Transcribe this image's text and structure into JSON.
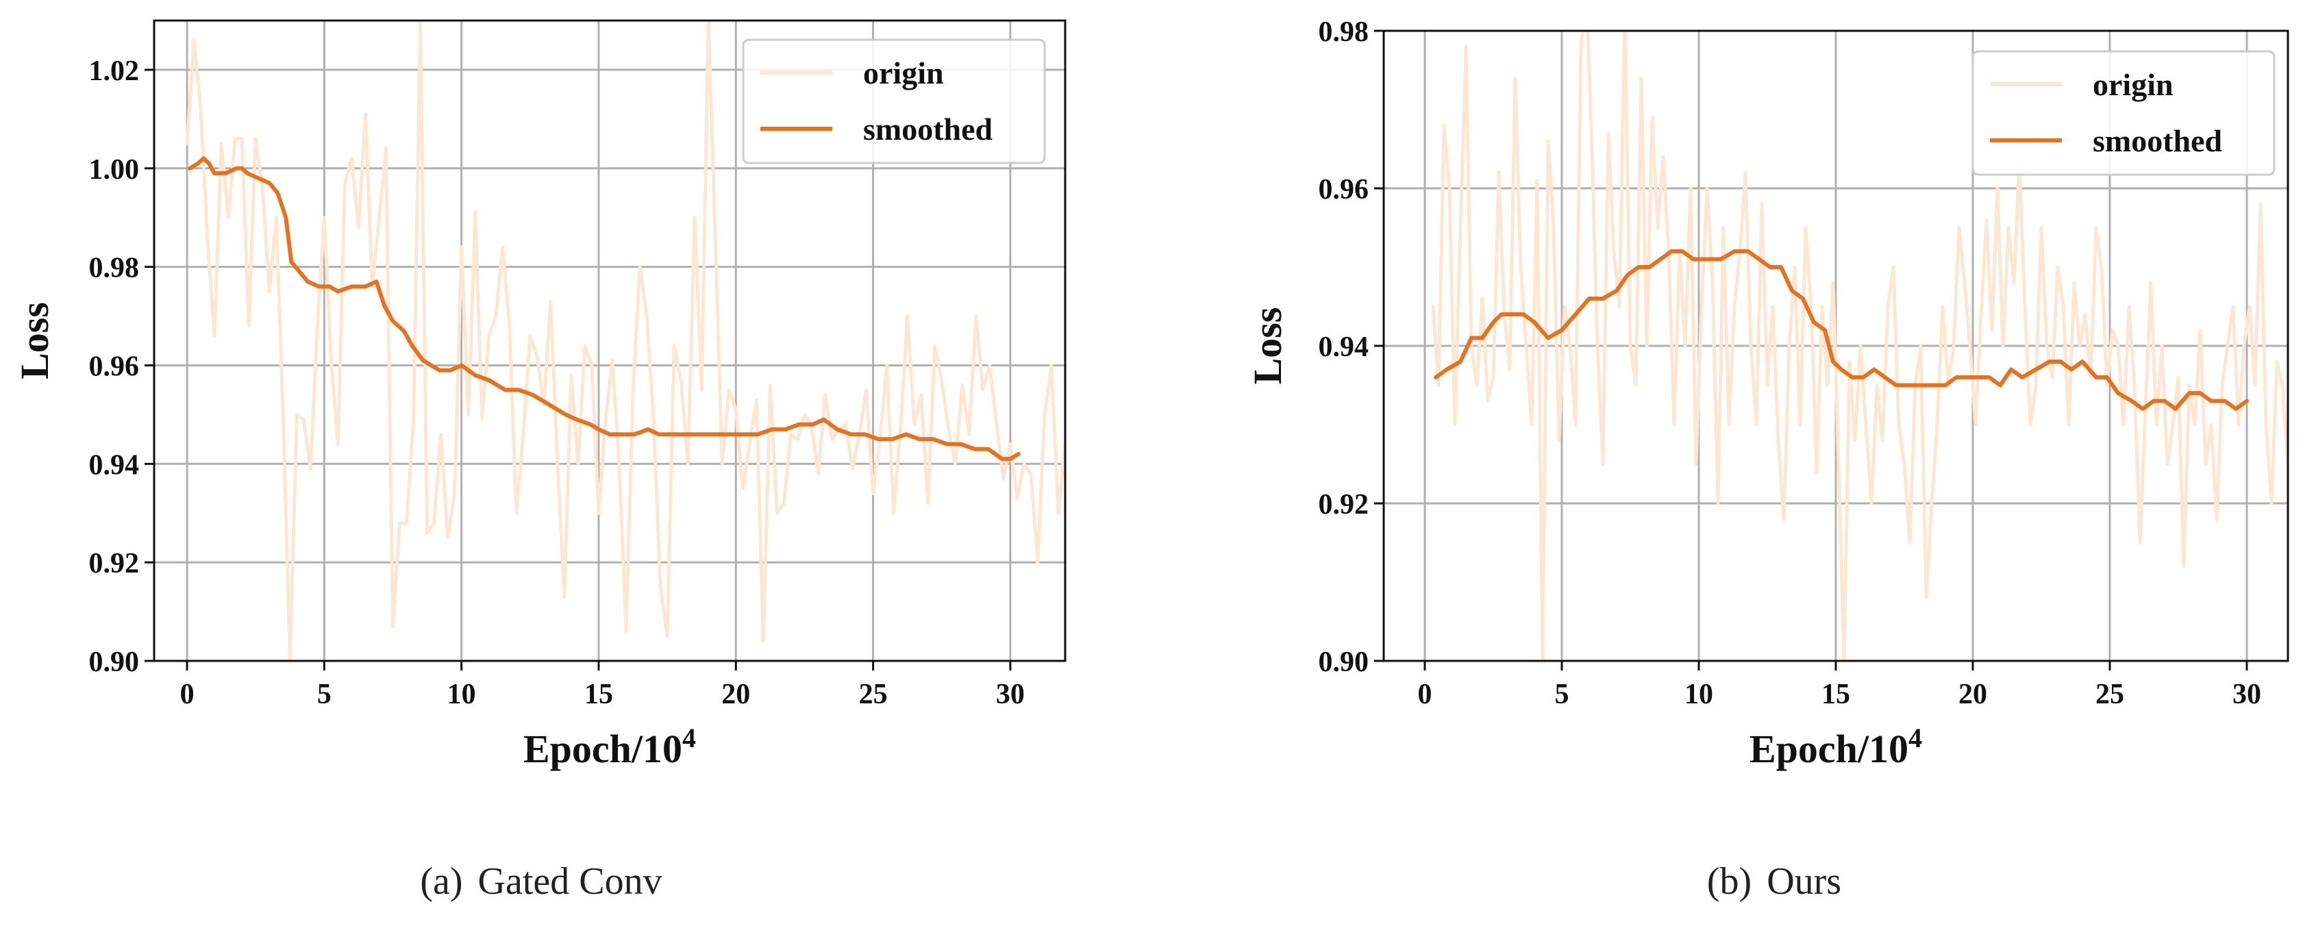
{
  "chart_data": [
    {
      "type": "line",
      "caption": {
        "label": "(a)",
        "text": "Gated Conv"
      },
      "xlabel": "Epoch/10",
      "xlabel_sup": "4",
      "ylabel": "Loss",
      "xlim": [
        -1.2,
        32.0
      ],
      "ylim": [
        0.9,
        1.03
      ],
      "xticks": [
        0,
        5,
        10,
        15,
        20,
        25,
        30
      ],
      "yticks": [
        0.9,
        0.92,
        0.94,
        0.96,
        0.98,
        1.0,
        1.02
      ],
      "grid": true,
      "legend": "top-right",
      "series": [
        {
          "name": "origin",
          "color": "#fde6d2",
          "x_start": 0.0,
          "x_step": 0.25,
          "y": [
            1.005,
            1.026,
            1.012,
            0.985,
            0.966,
            1.005,
            0.99,
            1.006,
            1.006,
            0.968,
            1.006,
            0.996,
            0.975,
            0.99,
            0.95,
            0.9,
            0.95,
            0.949,
            0.939,
            0.968,
            0.99,
            0.961,
            0.944,
            0.997,
            1.002,
            0.988,
            1.011,
            0.976,
            0.99,
            1.004,
            0.907,
            0.928,
            0.928,
            0.949,
            1.03,
            0.926,
            0.928,
            0.946,
            0.925,
            0.934,
            0.984,
            0.95,
            0.991,
            0.949,
            0.966,
            0.97,
            0.984,
            0.968,
            0.93,
            0.946,
            0.966,
            0.962,
            0.952,
            0.973,
            0.94,
            0.913,
            0.958,
            0.94,
            0.964,
            0.96,
            0.93,
            0.949,
            0.961,
            0.94,
            0.906,
            0.955,
            0.98,
            0.97,
            0.949,
            0.915,
            0.905,
            0.964,
            0.957,
            0.94,
            0.99,
            0.955,
            1.03,
            0.986,
            0.94,
            0.955,
            0.951,
            0.935,
            0.944,
            0.953,
            0.904,
            0.956,
            0.93,
            0.932,
            0.946,
            0.945,
            0.95,
            0.948,
            0.938,
            0.954,
            0.945,
            0.947,
            0.948,
            0.939,
            0.946,
            0.955,
            0.934,
            0.945,
            0.96,
            0.93,
            0.947,
            0.97,
            0.948,
            0.954,
            0.932,
            0.964,
            0.957,
            0.947,
            0.94,
            0.956,
            0.946,
            0.97,
            0.955,
            0.96,
            0.948,
            0.937,
            0.944,
            0.933,
            0.94,
            0.938,
            0.92,
            0.95,
            0.96,
            0.93,
            0.944,
            0.945,
            0.948,
            0.955,
            0.94,
            0.92,
            0.93,
            0.945,
            0.958,
            0.95,
            0.94,
            0.935,
            0.946,
            0.955,
            0.93,
            0.912,
            0.947,
            0.944,
            0.94,
            0.92,
            0.935,
            0.94,
            0.95,
            0.947,
            0.958,
            0.943,
            0.935,
            0.95,
            0.946,
            0.932,
            0.925,
            0.92,
            0.946,
            0.931,
            0.916,
            0.94,
            0.96,
            0.948,
            0.942,
            0.97,
            0.95,
            0.935,
            0.93,
            0.925,
            0.912,
            0.928,
            0.925,
            0.926,
            0.909,
            0.945,
            0.957
          ]
        },
        {
          "name": "smoothed",
          "color": "#e8711e",
          "points": [
            [
              0.1,
              1.0
            ],
            [
              0.4,
              1.001
            ],
            [
              0.6,
              1.002
            ],
            [
              0.8,
              1.001
            ],
            [
              1.0,
              0.999
            ],
            [
              1.4,
              0.999
            ],
            [
              1.8,
              1.0
            ],
            [
              2.0,
              1.0
            ],
            [
              2.2,
              0.999
            ],
            [
              2.6,
              0.998
            ],
            [
              3.0,
              0.997
            ],
            [
              3.3,
              0.995
            ],
            [
              3.6,
              0.99
            ],
            [
              3.8,
              0.981
            ],
            [
              4.1,
              0.979
            ],
            [
              4.4,
              0.977
            ],
            [
              4.8,
              0.976
            ],
            [
              5.2,
              0.976
            ],
            [
              5.5,
              0.975
            ],
            [
              6.0,
              0.976
            ],
            [
              6.5,
              0.976
            ],
            [
              6.9,
              0.977
            ],
            [
              7.2,
              0.972
            ],
            [
              7.5,
              0.969
            ],
            [
              7.9,
              0.967
            ],
            [
              8.2,
              0.964
            ],
            [
              8.6,
              0.961
            ],
            [
              9.2,
              0.959
            ],
            [
              9.6,
              0.959
            ],
            [
              10.0,
              0.96
            ],
            [
              10.5,
              0.958
            ],
            [
              11.0,
              0.957
            ],
            [
              11.6,
              0.955
            ],
            [
              12.1,
              0.955
            ],
            [
              12.6,
              0.954
            ],
            [
              13.2,
              0.952
            ],
            [
              13.8,
              0.95
            ],
            [
              14.2,
              0.949
            ],
            [
              14.7,
              0.948
            ],
            [
              15.0,
              0.947
            ],
            [
              15.4,
              0.946
            ],
            [
              15.8,
              0.946
            ],
            [
              16.3,
              0.946
            ],
            [
              16.8,
              0.947
            ],
            [
              17.2,
              0.946
            ],
            [
              17.8,
              0.946
            ],
            [
              18.3,
              0.946
            ],
            [
              18.8,
              0.946
            ],
            [
              19.3,
              0.946
            ],
            [
              19.8,
              0.946
            ],
            [
              20.3,
              0.946
            ],
            [
              20.8,
              0.946
            ],
            [
              21.3,
              0.947
            ],
            [
              21.8,
              0.947
            ],
            [
              22.3,
              0.948
            ],
            [
              22.8,
              0.948
            ],
            [
              23.2,
              0.949
            ],
            [
              23.7,
              0.947
            ],
            [
              24.2,
              0.946
            ],
            [
              24.7,
              0.946
            ],
            [
              25.2,
              0.945
            ],
            [
              25.7,
              0.945
            ],
            [
              26.2,
              0.946
            ],
            [
              26.7,
              0.945
            ],
            [
              27.2,
              0.945
            ],
            [
              27.7,
              0.944
            ],
            [
              28.2,
              0.944
            ],
            [
              28.7,
              0.943
            ],
            [
              29.2,
              0.943
            ],
            [
              29.7,
              0.941
            ],
            [
              30.0,
              0.941
            ],
            [
              30.3,
              0.942
            ]
          ]
        }
      ]
    },
    {
      "type": "line",
      "caption": {
        "label": "(b)",
        "text": "Ours"
      },
      "xlabel": "Epoch/10",
      "xlabel_sup": "4",
      "ylabel": "Loss",
      "xlim": [
        -1.5,
        31.5
      ],
      "ylim": [
        0.9,
        0.98
      ],
      "xticks": [
        0,
        5,
        10,
        15,
        20,
        25,
        30
      ],
      "yticks": [
        0.9,
        0.92,
        0.94,
        0.96,
        0.98
      ],
      "grid": true,
      "legend": "top-right",
      "series": [
        {
          "name": "origin",
          "color": "#fde6d2",
          "x_start": 0.3,
          "x_step": 0.2,
          "y": [
            0.945,
            0.935,
            0.968,
            0.96,
            0.93,
            0.955,
            0.978,
            0.94,
            0.935,
            0.946,
            0.933,
            0.936,
            0.962,
            0.944,
            0.937,
            0.974,
            0.95,
            0.94,
            0.93,
            0.961,
            0.9,
            0.966,
            0.955,
            0.928,
            0.945,
            0.94,
            0.93,
            0.978,
            0.985,
            0.965,
            0.94,
            0.925,
            0.967,
            0.952,
            0.945,
            0.982,
            0.94,
            0.935,
            0.974,
            0.94,
            0.969,
            0.955,
            0.964,
            0.952,
            0.93,
            0.952,
            0.94,
            0.96,
            0.925,
            0.945,
            0.96,
            0.948,
            0.92,
            0.955,
            0.93,
            0.945,
            0.952,
            0.962,
            0.94,
            0.93,
            0.958,
            0.935,
            0.945,
            0.928,
            0.918,
            0.94,
            0.95,
            0.93,
            0.955,
            0.945,
            0.924,
            0.945,
            0.935,
            0.948,
            0.925,
            0.9,
            0.938,
            0.928,
            0.94,
            0.93,
            0.92,
            0.935,
            0.928,
            0.945,
            0.95,
            0.93,
            0.925,
            0.915,
            0.935,
            0.94,
            0.908,
            0.92,
            0.93,
            0.945,
            0.935,
            0.94,
            0.955,
            0.948,
            0.94,
            0.93,
            0.944,
            0.956,
            0.942,
            0.96,
            0.94,
            0.955,
            0.948,
            0.963,
            0.945,
            0.93,
            0.935,
            0.955,
            0.94,
            0.936,
            0.95,
            0.945,
            0.93,
            0.948,
            0.94,
            0.944,
            0.936,
            0.955,
            0.95,
            0.935,
            0.942,
            0.94,
            0.93,
            0.945,
            0.935,
            0.915,
            0.932,
            0.948,
            0.93,
            0.94,
            0.925,
            0.93,
            0.936,
            0.912,
            0.935,
            0.93,
            0.942,
            0.925,
            0.93,
            0.918,
            0.935,
            0.94,
            0.945,
            0.93,
            0.94,
            0.945,
            0.935,
            0.958,
            0.93,
            0.92,
            0.938,
            0.935,
            0.925,
            0.935,
            0.915,
            0.948,
            0.944
          ]
        },
        {
          "name": "smoothed",
          "color": "#e8711e",
          "points": [
            [
              0.4,
              0.936
            ],
            [
              0.8,
              0.937
            ],
            [
              1.3,
              0.938
            ],
            [
              1.7,
              0.941
            ],
            [
              2.1,
              0.941
            ],
            [
              2.5,
              0.943
            ],
            [
              2.8,
              0.944
            ],
            [
              3.2,
              0.944
            ],
            [
              3.6,
              0.944
            ],
            [
              4.0,
              0.943
            ],
            [
              4.5,
              0.941
            ],
            [
              5.0,
              0.942
            ],
            [
              5.5,
              0.944
            ],
            [
              6.0,
              0.946
            ],
            [
              6.5,
              0.946
            ],
            [
              7.0,
              0.947
            ],
            [
              7.4,
              0.949
            ],
            [
              7.8,
              0.95
            ],
            [
              8.2,
              0.95
            ],
            [
              8.6,
              0.951
            ],
            [
              9.0,
              0.952
            ],
            [
              9.4,
              0.952
            ],
            [
              9.8,
              0.951
            ],
            [
              10.3,
              0.951
            ],
            [
              10.8,
              0.951
            ],
            [
              11.3,
              0.952
            ],
            [
              11.8,
              0.952
            ],
            [
              12.2,
              0.951
            ],
            [
              12.6,
              0.95
            ],
            [
              13.0,
              0.95
            ],
            [
              13.4,
              0.947
            ],
            [
              13.8,
              0.946
            ],
            [
              14.2,
              0.943
            ],
            [
              14.6,
              0.942
            ],
            [
              14.9,
              0.938
            ],
            [
              15.2,
              0.937
            ],
            [
              15.6,
              0.936
            ],
            [
              16.0,
              0.936
            ],
            [
              16.4,
              0.937
            ],
            [
              16.8,
              0.936
            ],
            [
              17.2,
              0.935
            ],
            [
              17.6,
              0.935
            ],
            [
              18.0,
              0.935
            ],
            [
              18.5,
              0.935
            ],
            [
              19.0,
              0.935
            ],
            [
              19.4,
              0.936
            ],
            [
              19.8,
              0.936
            ],
            [
              20.2,
              0.936
            ],
            [
              20.6,
              0.936
            ],
            [
              21.0,
              0.935
            ],
            [
              21.4,
              0.937
            ],
            [
              21.8,
              0.936
            ],
            [
              22.3,
              0.937
            ],
            [
              22.8,
              0.938
            ],
            [
              23.2,
              0.938
            ],
            [
              23.6,
              0.937
            ],
            [
              24.0,
              0.938
            ],
            [
              24.5,
              0.936
            ],
            [
              24.9,
              0.936
            ],
            [
              25.3,
              0.934
            ],
            [
              25.8,
              0.933
            ],
            [
              26.2,
              0.932
            ],
            [
              26.6,
              0.933
            ],
            [
              27.0,
              0.933
            ],
            [
              27.4,
              0.932
            ],
            [
              27.9,
              0.934
            ],
            [
              28.3,
              0.934
            ],
            [
              28.7,
              0.933
            ],
            [
              29.2,
              0.933
            ],
            [
              29.6,
              0.932
            ],
            [
              30.0,
              0.933
            ]
          ]
        }
      ]
    }
  ]
}
